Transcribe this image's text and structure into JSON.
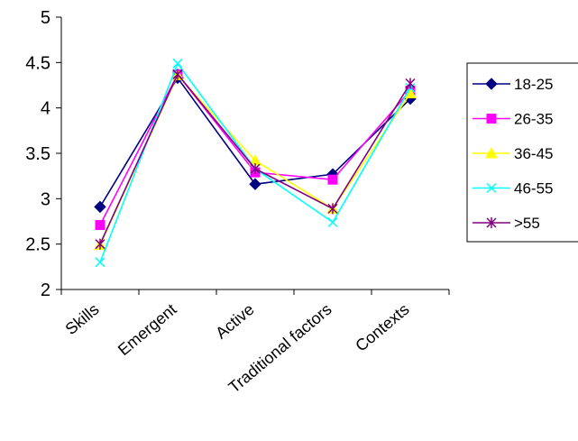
{
  "chart_data": {
    "type": "line",
    "categories": [
      "Skills",
      "Emergent",
      "Active",
      "Traditional factors",
      "Contexts"
    ],
    "ylim": [
      2,
      5
    ],
    "yticks": [
      "2",
      "2.5",
      "3",
      "3.5",
      "4",
      "4.5",
      "5"
    ],
    "grid": false,
    "legend_position": "right",
    "series": [
      {
        "name": "18-25",
        "color": "#000080",
        "marker": "diamond",
        "values": [
          2.91,
          4.33,
          3.16,
          3.27,
          4.1
        ]
      },
      {
        "name": "26-35",
        "color": "#ff00ff",
        "marker": "square",
        "values": [
          2.71,
          4.37,
          3.29,
          3.21,
          4.19
        ]
      },
      {
        "name": "36-45",
        "color": "#ffff00",
        "marker": "triangle",
        "values": [
          2.49,
          4.36,
          3.42,
          2.89,
          4.16
        ]
      },
      {
        "name": "46-55",
        "color": "#00ffff",
        "marker": "x",
        "values": [
          2.3,
          4.49,
          3.33,
          2.74,
          4.22
        ]
      },
      {
        "name": ">55",
        "color": "#800080",
        "marker": "star",
        "values": [
          2.5,
          4.37,
          3.33,
          2.89,
          4.27
        ]
      }
    ]
  }
}
